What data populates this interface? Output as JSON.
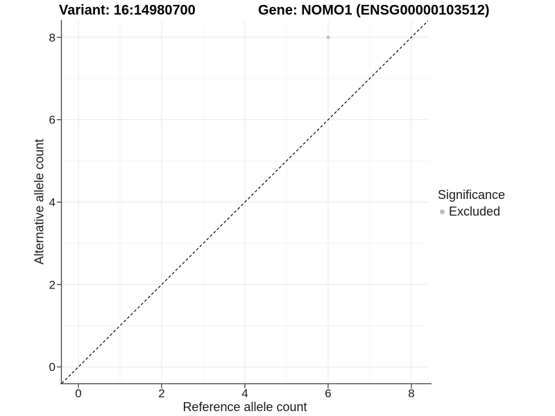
{
  "titles": {
    "left": "Variant: 16:14980700",
    "right": "Gene: NOMO1 (ENSG00000103512)"
  },
  "legend": {
    "title": "Significance",
    "items": [
      {
        "label": "Excluded",
        "color": "#bdbdbd"
      }
    ]
  },
  "colors": {
    "background": "#ffffff",
    "axis_line": "#3c3c3c",
    "tick": "#333333",
    "axis_text": "#1a1a1a",
    "grid_major": "#e8e8e8",
    "grid_minor": "#f4f4f4",
    "point": "#bdbdbd",
    "identity_line": "#000000"
  },
  "chart_data": {
    "type": "scatter",
    "title": "Variant: 16:14980700 — Gene: NOMO1 (ENSG00000103512)",
    "xlabel": "Reference allele count",
    "ylabel": "Alternative allele count",
    "xlim": [
      -0.4,
      8.4
    ],
    "ylim": [
      -0.4,
      8.4
    ],
    "xticks": [
      0,
      2,
      4,
      6,
      8
    ],
    "yticks": [
      0,
      2,
      4,
      6,
      8
    ],
    "minor_xticks": [
      1,
      3,
      5,
      7
    ],
    "minor_yticks": [
      1,
      3,
      5,
      7
    ],
    "grid": "major+minor",
    "legend_position": "right",
    "reference_line": {
      "type": "identity y=x",
      "style": "dashed",
      "color": "#000000"
    },
    "series": [
      {
        "name": "Excluded",
        "color": "#bdbdbd",
        "points": [
          [
            6,
            8
          ]
        ]
      }
    ]
  }
}
